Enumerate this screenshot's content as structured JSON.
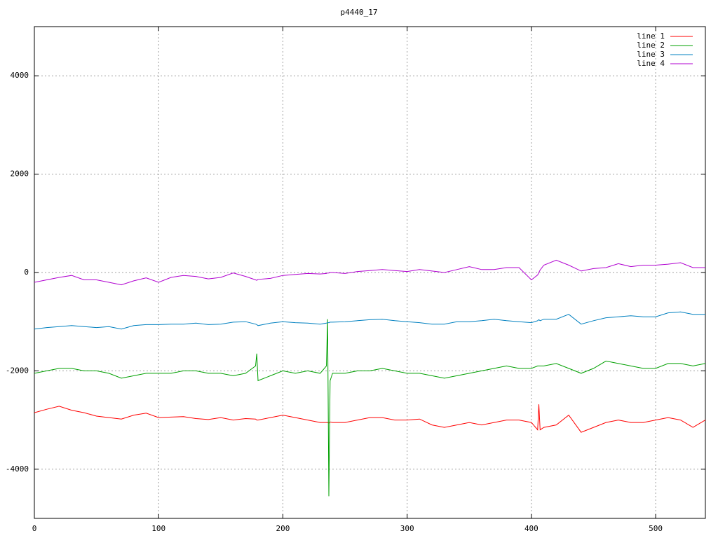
{
  "chart_data": {
    "type": "line",
    "title": "p4440_17",
    "x": [
      0,
      10,
      20,
      30,
      40,
      50,
      60,
      70,
      80,
      90,
      100,
      110,
      120,
      130,
      140,
      150,
      160,
      170,
      178,
      179,
      180,
      190,
      200,
      210,
      220,
      230,
      235,
      236,
      237,
      238,
      240,
      250,
      260,
      270,
      280,
      290,
      300,
      310,
      320,
      330,
      340,
      350,
      360,
      370,
      380,
      390,
      400,
      405,
      406,
      407,
      410,
      420,
      430,
      440,
      450,
      460,
      470,
      480,
      490,
      500,
      510,
      520,
      530,
      540
    ],
    "series": [
      {
        "name": "line 1",
        "color": "#ff0000",
        "values": [
          -2850,
          -2780,
          -2720,
          -2800,
          -2850,
          -2920,
          -2950,
          -2980,
          -2900,
          -2860,
          -2950,
          -2940,
          -2930,
          -2970,
          -2990,
          -2950,
          -3000,
          -2970,
          -2980,
          -3000,
          -3000,
          -2950,
          -2900,
          -2950,
          -3000,
          -3050,
          -3050,
          -3050,
          -3060,
          -3040,
          -3050,
          -3050,
          -3000,
          -2950,
          -2950,
          -3000,
          -3000,
          -2980,
          -3100,
          -3150,
          -3100,
          -3050,
          -3100,
          -3050,
          -3000,
          -3000,
          -3050,
          -3200,
          -2680,
          -3200,
          -3150,
          -3100,
          -2900,
          -3250,
          -3150,
          -3050,
          -3000,
          -3050,
          -3050,
          -3000,
          -2950,
          -3000,
          -3150,
          -3000
        ]
      },
      {
        "name": "line 2",
        "color": "#00a000",
        "values": [
          -2050,
          -2000,
          -1950,
          -1950,
          -2000,
          -2000,
          -2050,
          -2150,
          -2100,
          -2050,
          -2050,
          -2050,
          -2000,
          -2000,
          -2050,
          -2050,
          -2100,
          -2050,
          -1900,
          -1650,
          -2200,
          -2100,
          -2000,
          -2050,
          -2000,
          -2050,
          -1900,
          -950,
          -4550,
          -2200,
          -2050,
          -2050,
          -2000,
          -2000,
          -1950,
          -2000,
          -2050,
          -2050,
          -2100,
          -2150,
          -2100,
          -2050,
          -2000,
          -1950,
          -1900,
          -1950,
          -1950,
          -1900,
          -1900,
          -1900,
          -1900,
          -1850,
          -1950,
          -2050,
          -1950,
          -1800,
          -1850,
          -1900,
          -1950,
          -1950,
          -1850,
          -1850,
          -1900,
          -1850
        ]
      },
      {
        "name": "line 3",
        "color": "#0080c0",
        "values": [
          -1150,
          -1120,
          -1100,
          -1080,
          -1100,
          -1120,
          -1100,
          -1150,
          -1080,
          -1060,
          -1060,
          -1050,
          -1050,
          -1030,
          -1060,
          -1050,
          -1010,
          -1000,
          -1050,
          -1060,
          -1080,
          -1030,
          -1000,
          -1020,
          -1030,
          -1050,
          -1030,
          -1020,
          -1020,
          -1010,
          -1010,
          -1000,
          -980,
          -960,
          -950,
          -980,
          -1000,
          -1020,
          -1050,
          -1050,
          -1000,
          -1000,
          -980,
          -950,
          -980,
          -1000,
          -1020,
          -980,
          -960,
          -980,
          -950,
          -950,
          -850,
          -1050,
          -980,
          -920,
          -900,
          -880,
          -900,
          -900,
          -820,
          -800,
          -850,
          -850
        ]
      },
      {
        "name": "line 4",
        "color": "#b000d0",
        "values": [
          -200,
          -150,
          -100,
          -60,
          -150,
          -150,
          -200,
          -250,
          -170,
          -110,
          -200,
          -100,
          -60,
          -80,
          -130,
          -100,
          -10,
          -80,
          -150,
          -160,
          -140,
          -120,
          -60,
          -40,
          -20,
          -30,
          -20,
          -10,
          -10,
          0,
          0,
          -20,
          20,
          40,
          60,
          40,
          20,
          60,
          30,
          0,
          60,
          120,
          60,
          60,
          100,
          100,
          -150,
          -50,
          0,
          50,
          150,
          250,
          150,
          30,
          80,
          100,
          180,
          120,
          150,
          150,
          170,
          200,
          100,
          100
        ]
      }
    ],
    "xlim": [
      0,
      540
    ],
    "xticks": [
      0,
      100,
      200,
      300,
      400,
      500
    ],
    "ylim": [
      -5000,
      5000
    ],
    "yticks": [
      -4000,
      -2000,
      0,
      2000,
      4000
    ],
    "grid": true,
    "legend": "top right"
  }
}
